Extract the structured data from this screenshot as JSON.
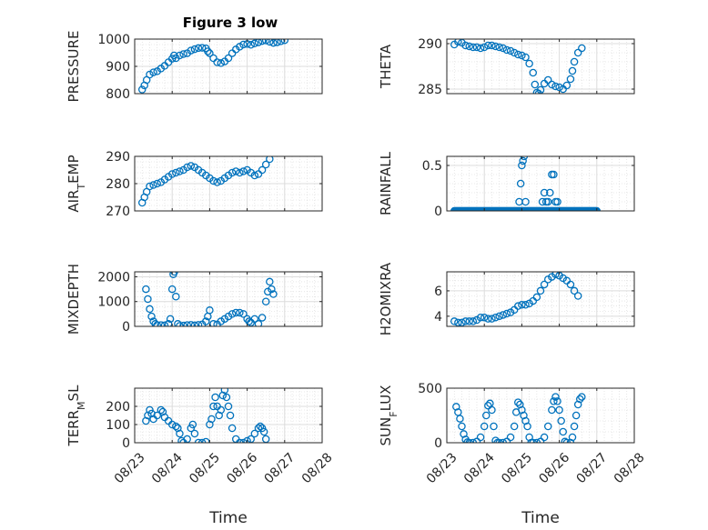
{
  "figure": {
    "title": "Figure 3 low"
  },
  "chart_data": [
    {
      "type": "scatter",
      "ylabel": "PRESSURE",
      "ylim": [
        800,
        1000
      ],
      "yticks": [
        800,
        900,
        1000
      ],
      "yticklabels": [
        "800",
        "900",
        "1000"
      ],
      "grid": true,
      "series_color": "#0072BD",
      "points": [
        [
          0.2,
          815
        ],
        [
          0.26,
          830
        ],
        [
          0.32,
          850
        ],
        [
          0.4,
          870
        ],
        [
          0.5,
          878
        ],
        [
          0.6,
          882
        ],
        [
          0.7,
          892
        ],
        [
          0.8,
          902
        ],
        [
          0.9,
          915
        ],
        [
          1.0,
          928
        ],
        [
          1.05,
          940
        ],
        [
          1.1,
          930
        ],
        [
          1.2,
          940
        ],
        [
          1.3,
          945
        ],
        [
          1.4,
          948
        ],
        [
          1.5,
          958
        ],
        [
          1.6,
          963
        ],
        [
          1.7,
          967
        ],
        [
          1.8,
          968
        ],
        [
          1.9,
          966
        ],
        [
          1.95,
          955
        ],
        [
          2.0,
          948
        ],
        [
          2.1,
          930
        ],
        [
          2.2,
          915
        ],
        [
          2.3,
          912
        ],
        [
          2.4,
          918
        ],
        [
          2.5,
          930
        ],
        [
          2.6,
          948
        ],
        [
          2.7,
          962
        ],
        [
          2.8,
          972
        ],
        [
          2.9,
          980
        ],
        [
          3.0,
          982
        ],
        [
          3.1,
          979
        ],
        [
          3.2,
          984
        ],
        [
          3.3,
          988
        ],
        [
          3.4,
          993
        ],
        [
          3.5,
          995
        ],
        [
          3.6,
          990
        ],
        [
          3.7,
          986
        ],
        [
          3.8,
          988
        ],
        [
          3.9,
          992
        ],
        [
          4.0,
          996
        ]
      ]
    },
    {
      "type": "scatter",
      "ylabel": "THETA",
      "ylim": [
        284.5,
        290.5
      ],
      "yticks": [
        285,
        290
      ],
      "yticklabels": [
        "285",
        "290"
      ],
      "grid": true,
      "series_color": "#0072BD",
      "points": [
        [
          0.2,
          289.9
        ],
        [
          0.3,
          290.2
        ],
        [
          0.4,
          290.1
        ],
        [
          0.5,
          289.8
        ],
        [
          0.6,
          289.7
        ],
        [
          0.7,
          289.6
        ],
        [
          0.8,
          289.6
        ],
        [
          0.9,
          289.5
        ],
        [
          1.0,
          289.6
        ],
        [
          1.1,
          289.8
        ],
        [
          1.2,
          289.8
        ],
        [
          1.3,
          289.7
        ],
        [
          1.4,
          289.6
        ],
        [
          1.5,
          289.5
        ],
        [
          1.6,
          289.3
        ],
        [
          1.7,
          289.2
        ],
        [
          1.8,
          289.0
        ],
        [
          1.9,
          288.8
        ],
        [
          2.0,
          288.7
        ],
        [
          2.1,
          288.5
        ],
        [
          2.2,
          287.8
        ],
        [
          2.3,
          286.8
        ],
        [
          2.35,
          285.5
        ],
        [
          2.4,
          284.6
        ],
        [
          2.45,
          284.5
        ],
        [
          2.5,
          284.9
        ],
        [
          2.6,
          285.6
        ],
        [
          2.7,
          286.0
        ],
        [
          2.8,
          285.5
        ],
        [
          2.9,
          285.3
        ],
        [
          3.0,
          285.2
        ],
        [
          3.1,
          285.0
        ],
        [
          3.2,
          285.4
        ],
        [
          3.3,
          286.1
        ],
        [
          3.35,
          287.0
        ],
        [
          3.4,
          288.0
        ],
        [
          3.5,
          289.0
        ],
        [
          3.6,
          289.5
        ]
      ]
    },
    {
      "type": "scatter",
      "ylabel": "AIR_TEMP",
      "ylim": [
        270,
        290
      ],
      "yticks": [
        270,
        280,
        290
      ],
      "yticklabels": [
        "270",
        "280",
        "290"
      ],
      "grid": true,
      "series_color": "#0072BD",
      "points": [
        [
          0.2,
          273
        ],
        [
          0.26,
          275
        ],
        [
          0.32,
          277
        ],
        [
          0.4,
          279
        ],
        [
          0.5,
          279.5
        ],
        [
          0.6,
          280
        ],
        [
          0.7,
          280.5
        ],
        [
          0.8,
          281.5
        ],
        [
          0.9,
          282.5
        ],
        [
          1.0,
          283.5
        ],
        [
          1.1,
          284
        ],
        [
          1.2,
          284.5
        ],
        [
          1.3,
          285
        ],
        [
          1.4,
          286
        ],
        [
          1.5,
          286.5
        ],
        [
          1.6,
          286
        ],
        [
          1.7,
          285
        ],
        [
          1.8,
          284
        ],
        [
          1.9,
          283
        ],
        [
          2.0,
          282
        ],
        [
          2.1,
          281
        ],
        [
          2.2,
          280.5
        ],
        [
          2.3,
          281
        ],
        [
          2.4,
          282
        ],
        [
          2.5,
          283
        ],
        [
          2.6,
          284
        ],
        [
          2.7,
          284.5
        ],
        [
          2.8,
          284
        ],
        [
          2.9,
          284.5
        ],
        [
          3.0,
          285
        ],
        [
          3.1,
          284
        ],
        [
          3.2,
          283
        ],
        [
          3.3,
          283.5
        ],
        [
          3.4,
          285
        ],
        [
          3.5,
          287
        ],
        [
          3.6,
          289
        ]
      ]
    },
    {
      "type": "scatter",
      "ylabel": "RAINFALL",
      "ylim": [
        0,
        0.6
      ],
      "yticks": [
        0,
        0.5
      ],
      "yticklabels": [
        "0",
        "0.5"
      ],
      "grid": true,
      "series_color": "#0072BD",
      "baseline": {
        "x_start": 0.2,
        "x_end": 4.0,
        "step": 0.025,
        "y": 0
      },
      "points": [
        [
          1.93,
          0.1
        ],
        [
          1.97,
          0.3
        ],
        [
          2.0,
          0.5
        ],
        [
          2.03,
          0.55
        ],
        [
          2.06,
          0.6
        ],
        [
          2.1,
          0.1
        ],
        [
          2.55,
          0.1
        ],
        [
          2.6,
          0.2
        ],
        [
          2.65,
          0.1
        ],
        [
          2.7,
          0.1
        ],
        [
          2.75,
          0.2
        ],
        [
          2.8,
          0.4
        ],
        [
          2.85,
          0.4
        ],
        [
          2.9,
          0.1
        ],
        [
          2.95,
          0.1
        ]
      ]
    },
    {
      "type": "scatter",
      "ylabel": "MIXDEPTH",
      "ylim": [
        0,
        2200
      ],
      "yticks": [
        0,
        1000,
        2000
      ],
      "yticklabels": [
        "0",
        "1000",
        "2000"
      ],
      "grid": true,
      "series_color": "#0072BD",
      "points": [
        [
          0.3,
          1500
        ],
        [
          0.35,
          1100
        ],
        [
          0.4,
          700
        ],
        [
          0.45,
          400
        ],
        [
          0.5,
          200
        ],
        [
          0.55,
          100
        ],
        [
          0.6,
          50
        ],
        [
          0.7,
          50
        ],
        [
          0.8,
          40
        ],
        [
          0.9,
          100
        ],
        [
          0.95,
          300
        ],
        [
          1.0,
          1500
        ],
        [
          1.03,
          2100
        ],
        [
          1.06,
          2200
        ],
        [
          1.1,
          1200
        ],
        [
          1.15,
          100
        ],
        [
          1.2,
          20
        ],
        [
          1.3,
          30
        ],
        [
          1.4,
          50
        ],
        [
          1.5,
          60
        ],
        [
          1.6,
          40
        ],
        [
          1.7,
          60
        ],
        [
          1.8,
          80
        ],
        [
          1.9,
          200
        ],
        [
          1.95,
          400
        ],
        [
          2.0,
          650
        ],
        [
          2.1,
          100
        ],
        [
          2.2,
          80
        ],
        [
          2.3,
          200
        ],
        [
          2.4,
          300
        ],
        [
          2.5,
          400
        ],
        [
          2.6,
          500
        ],
        [
          2.7,
          550
        ],
        [
          2.8,
          550
        ],
        [
          2.9,
          500
        ],
        [
          3.0,
          300
        ],
        [
          3.05,
          200
        ],
        [
          3.1,
          150
        ],
        [
          3.2,
          300
        ],
        [
          3.3,
          100
        ],
        [
          3.4,
          350
        ],
        [
          3.5,
          1000
        ],
        [
          3.55,
          1400
        ],
        [
          3.6,
          1800
        ],
        [
          3.65,
          1500
        ],
        [
          3.7,
          1300
        ]
      ]
    },
    {
      "type": "scatter",
      "ylabel": "H2OMIXRA",
      "ylim": [
        3.2,
        7.5
      ],
      "yticks": [
        4,
        6
      ],
      "yticklabels": [
        "4",
        "6"
      ],
      "grid": true,
      "series_color": "#0072BD",
      "points": [
        [
          0.2,
          3.6
        ],
        [
          0.3,
          3.5
        ],
        [
          0.4,
          3.5
        ],
        [
          0.5,
          3.6
        ],
        [
          0.6,
          3.6
        ],
        [
          0.7,
          3.6
        ],
        [
          0.8,
          3.7
        ],
        [
          0.9,
          3.9
        ],
        [
          1.0,
          3.9
        ],
        [
          1.1,
          3.8
        ],
        [
          1.2,
          3.8
        ],
        [
          1.3,
          3.9
        ],
        [
          1.4,
          4.0
        ],
        [
          1.5,
          4.1
        ],
        [
          1.6,
          4.2
        ],
        [
          1.7,
          4.3
        ],
        [
          1.8,
          4.5
        ],
        [
          1.9,
          4.8
        ],
        [
          2.0,
          4.9
        ],
        [
          2.1,
          4.9
        ],
        [
          2.2,
          5.0
        ],
        [
          2.3,
          5.2
        ],
        [
          2.4,
          5.5
        ],
        [
          2.5,
          6.0
        ],
        [
          2.6,
          6.5
        ],
        [
          2.7,
          6.9
        ],
        [
          2.8,
          7.1
        ],
        [
          2.9,
          7.3
        ],
        [
          3.0,
          7.2
        ],
        [
          3.1,
          7.0
        ],
        [
          3.2,
          6.8
        ],
        [
          3.3,
          6.5
        ],
        [
          3.4,
          6.0
        ],
        [
          3.5,
          5.6
        ]
      ]
    },
    {
      "type": "scatter",
      "ylabel": "TERR_MSL",
      "ylim": [
        0,
        300
      ],
      "yticks": [
        0,
        100,
        200
      ],
      "yticklabels": [
        "0",
        "100",
        "200"
      ],
      "grid": true,
      "series_color": "#0072BD",
      "points": [
        [
          0.3,
          120
        ],
        [
          0.35,
          150
        ],
        [
          0.4,
          180
        ],
        [
          0.45,
          160
        ],
        [
          0.5,
          130
        ],
        [
          0.6,
          150
        ],
        [
          0.7,
          180
        ],
        [
          0.75,
          170
        ],
        [
          0.8,
          140
        ],
        [
          0.9,
          120
        ],
        [
          1.0,
          100
        ],
        [
          1.1,
          90
        ],
        [
          1.15,
          80
        ],
        [
          1.2,
          50
        ],
        [
          1.25,
          10
        ],
        [
          1.3,
          0
        ],
        [
          1.4,
          20
        ],
        [
          1.5,
          80
        ],
        [
          1.55,
          100
        ],
        [
          1.6,
          50
        ],
        [
          1.7,
          0
        ],
        [
          1.8,
          0
        ],
        [
          1.9,
          5
        ],
        [
          2.0,
          100
        ],
        [
          2.05,
          130
        ],
        [
          2.1,
          200
        ],
        [
          2.15,
          250
        ],
        [
          2.2,
          200
        ],
        [
          2.25,
          150
        ],
        [
          2.3,
          180
        ],
        [
          2.35,
          260
        ],
        [
          2.4,
          290
        ],
        [
          2.45,
          250
        ],
        [
          2.5,
          200
        ],
        [
          2.55,
          150
        ],
        [
          2.6,
          80
        ],
        [
          2.7,
          20
        ],
        [
          2.8,
          0
        ],
        [
          2.9,
          0
        ],
        [
          3.0,
          10
        ],
        [
          3.1,
          20
        ],
        [
          3.2,
          50
        ],
        [
          3.3,
          80
        ],
        [
          3.35,
          90
        ],
        [
          3.4,
          80
        ],
        [
          3.45,
          60
        ],
        [
          3.5,
          20
        ]
      ]
    },
    {
      "type": "scatter",
      "ylabel": "SUN_FLUX",
      "ylim": [
        0,
        500
      ],
      "yticks": [
        0,
        500
      ],
      "yticklabels": [
        "0",
        "500"
      ],
      "grid": true,
      "series_color": "#0072BD",
      "points": [
        [
          0.25,
          330
        ],
        [
          0.3,
          280
        ],
        [
          0.35,
          220
        ],
        [
          0.4,
          150
        ],
        [
          0.45,
          80
        ],
        [
          0.5,
          30
        ],
        [
          0.55,
          5
        ],
        [
          0.6,
          0
        ],
        [
          0.7,
          0
        ],
        [
          0.8,
          10
        ],
        [
          0.9,
          50
        ],
        [
          1.0,
          150
        ],
        [
          1.05,
          250
        ],
        [
          1.1,
          340
        ],
        [
          1.15,
          360
        ],
        [
          1.2,
          300
        ],
        [
          1.25,
          150
        ],
        [
          1.3,
          20
        ],
        [
          1.35,
          0
        ],
        [
          1.4,
          0
        ],
        [
          1.5,
          0
        ],
        [
          1.6,
          10
        ],
        [
          1.7,
          50
        ],
        [
          1.8,
          150
        ],
        [
          1.85,
          280
        ],
        [
          1.9,
          370
        ],
        [
          1.95,
          350
        ],
        [
          2.0,
          300
        ],
        [
          2.05,
          250
        ],
        [
          2.1,
          200
        ],
        [
          2.15,
          150
        ],
        [
          2.2,
          50
        ],
        [
          2.25,
          0
        ],
        [
          2.3,
          0
        ],
        [
          2.4,
          0
        ],
        [
          2.5,
          10
        ],
        [
          2.6,
          50
        ],
        [
          2.7,
          150
        ],
        [
          2.8,
          300
        ],
        [
          2.85,
          380
        ],
        [
          2.9,
          420
        ],
        [
          2.95,
          380
        ],
        [
          3.0,
          300
        ],
        [
          3.05,
          200
        ],
        [
          3.1,
          100
        ],
        [
          3.15,
          10
        ],
        [
          3.2,
          0
        ],
        [
          3.3,
          0
        ],
        [
          3.35,
          50
        ],
        [
          3.4,
          150
        ],
        [
          3.45,
          250
        ],
        [
          3.5,
          350
        ],
        [
          3.55,
          400
        ],
        [
          3.6,
          420
        ]
      ]
    }
  ],
  "x_axis": {
    "xlim": [
      0,
      5
    ],
    "ticks": [
      0,
      1,
      2,
      3,
      4,
      5
    ],
    "ticklabels": [
      "08/23",
      "08/24",
      "08/25",
      "08/26",
      "08/27",
      "08/28"
    ],
    "xlabel": "Time"
  }
}
